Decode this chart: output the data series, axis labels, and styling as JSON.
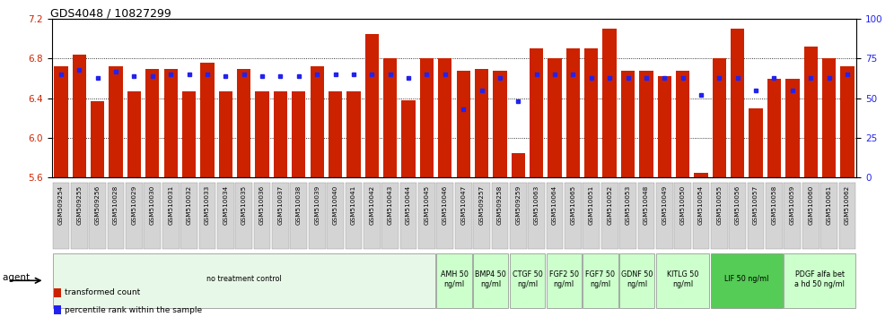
{
  "title": "GDS4048 / 10827299",
  "ylim_left": [
    5.6,
    7.2
  ],
  "ylim_right": [
    0,
    100
  ],
  "yticks_left": [
    5.6,
    6.0,
    6.4,
    6.8,
    7.2
  ],
  "yticks_right": [
    0,
    25,
    50,
    75,
    100
  ],
  "bar_color": "#CC2200",
  "dot_color": "#2222EE",
  "samples": [
    "GSM509254",
    "GSM509255",
    "GSM509256",
    "GSM510028",
    "GSM510029",
    "GSM510030",
    "GSM510031",
    "GSM510032",
    "GSM510033",
    "GSM510034",
    "GSM510035",
    "GSM510036",
    "GSM510037",
    "GSM510038",
    "GSM510039",
    "GSM510040",
    "GSM510041",
    "GSM510042",
    "GSM510043",
    "GSM510044",
    "GSM510045",
    "GSM510046",
    "GSM510047",
    "GSM509257",
    "GSM509258",
    "GSM509259",
    "GSM510063",
    "GSM510064",
    "GSM510065",
    "GSM510051",
    "GSM510052",
    "GSM510053",
    "GSM510048",
    "GSM510049",
    "GSM510050",
    "GSM510054",
    "GSM510055",
    "GSM510056",
    "GSM510057",
    "GSM510058",
    "GSM510059",
    "GSM510060",
    "GSM510061",
    "GSM510062"
  ],
  "red_values": [
    6.72,
    6.84,
    6.37,
    6.72,
    6.47,
    6.7,
    6.7,
    6.47,
    6.76,
    6.47,
    6.7,
    6.47,
    6.47,
    6.47,
    6.72,
    6.47,
    6.47,
    7.05,
    6.8,
    6.38,
    6.8,
    6.8,
    6.68,
    6.7,
    6.68,
    5.85,
    6.9,
    6.8,
    6.9,
    6.9,
    7.1,
    6.68,
    6.68,
    6.62,
    6.68,
    5.65,
    6.8,
    7.1,
    6.3,
    6.6,
    6.6,
    6.92,
    6.8,
    6.72
  ],
  "blue_values": [
    65,
    68,
    63,
    67,
    64,
    64,
    65,
    65,
    65,
    64,
    65,
    64,
    64,
    64,
    65,
    65,
    65,
    65,
    65,
    63,
    65,
    65,
    43,
    55,
    63,
    48,
    65,
    65,
    65,
    63,
    63,
    63,
    63,
    63,
    63,
    52,
    63,
    63,
    55,
    63,
    55,
    63,
    63,
    65
  ],
  "agent_groups": [
    {
      "label": "no treatment control",
      "start": 0,
      "end": 20,
      "color": "#e8f8e8"
    },
    {
      "label": "AMH 50\nng/ml",
      "start": 21,
      "end": 22,
      "color": "#ccffcc"
    },
    {
      "label": "BMP4 50\nng/ml",
      "start": 23,
      "end": 24,
      "color": "#ccffcc"
    },
    {
      "label": "CTGF 50\nng/ml",
      "start": 25,
      "end": 26,
      "color": "#ccffcc"
    },
    {
      "label": "FGF2 50\nng/ml",
      "start": 27,
      "end": 28,
      "color": "#ccffcc"
    },
    {
      "label": "FGF7 50\nng/ml",
      "start": 29,
      "end": 30,
      "color": "#ccffcc"
    },
    {
      "label": "GDNF 50\nng/ml",
      "start": 31,
      "end": 32,
      "color": "#ccffcc"
    },
    {
      "label": "KITLG 50\nng/ml",
      "start": 33,
      "end": 35,
      "color": "#ccffcc"
    },
    {
      "label": "LIF 50 ng/ml",
      "start": 36,
      "end": 39,
      "color": "#55cc55"
    },
    {
      "label": "PDGF alfa bet\na hd 50 ng/ml",
      "start": 40,
      "end": 43,
      "color": "#ccffcc"
    }
  ],
  "legend_labels": [
    "transformed count",
    "percentile rank within the sample"
  ],
  "legend_colors": [
    "#CC2200",
    "#2222EE"
  ],
  "bar_width": 0.75,
  "left_color": "#CC2200",
  "right_color": "#2222EE"
}
